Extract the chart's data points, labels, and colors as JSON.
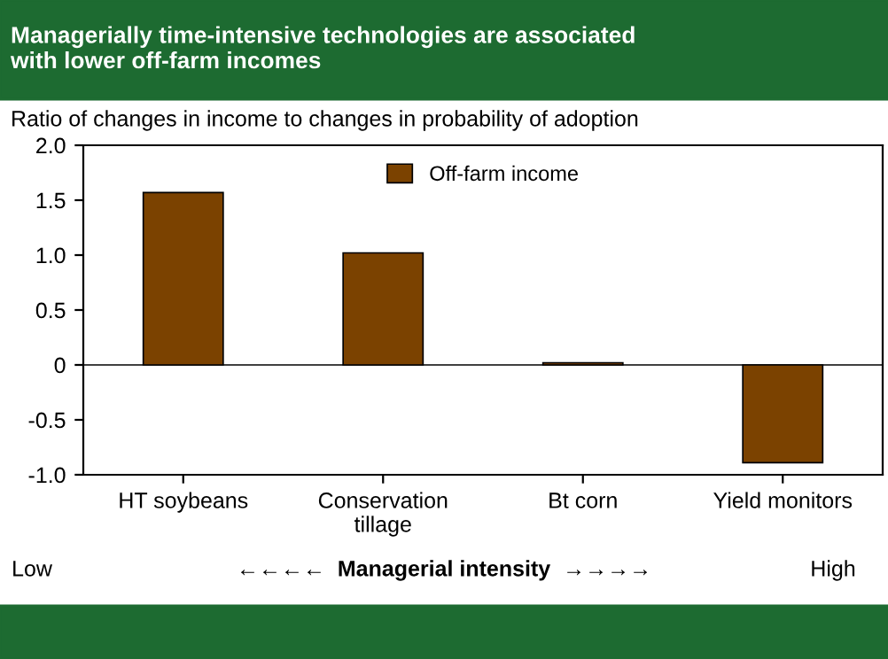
{
  "chart_data": {
    "type": "bar",
    "title": "Managerially time-intensive technologies are associated\nwith lower off-farm incomes",
    "ylabel": "Ratio of changes in income to changes in probability of adoption",
    "categories": [
      "HT soybeans",
      "Conservation\ntillage",
      "Bt corn",
      "Yield monitors"
    ],
    "series": [
      {
        "name": "Off-farm income",
        "color": "#7b4200",
        "values": [
          1.57,
          1.02,
          0.02,
          -0.89
        ]
      }
    ],
    "ylim": [
      -1.0,
      2.0
    ],
    "yticks": [
      {
        "value": 2,
        "label": "2.0"
      },
      1.5,
      {
        "value": 1,
        "label": "1.0"
      },
      0.5,
      0,
      -0.5,
      {
        "value": -1,
        "label": "-1.0"
      }
    ],
    "ref_lines": [
      {
        "axis": "y",
        "value": 0,
        "color": "#000000"
      }
    ],
    "grid": false,
    "legend": "top",
    "annotations": [
      "Low",
      "←←←←  Managerial intensity  →→→→",
      "High"
    ]
  }
}
